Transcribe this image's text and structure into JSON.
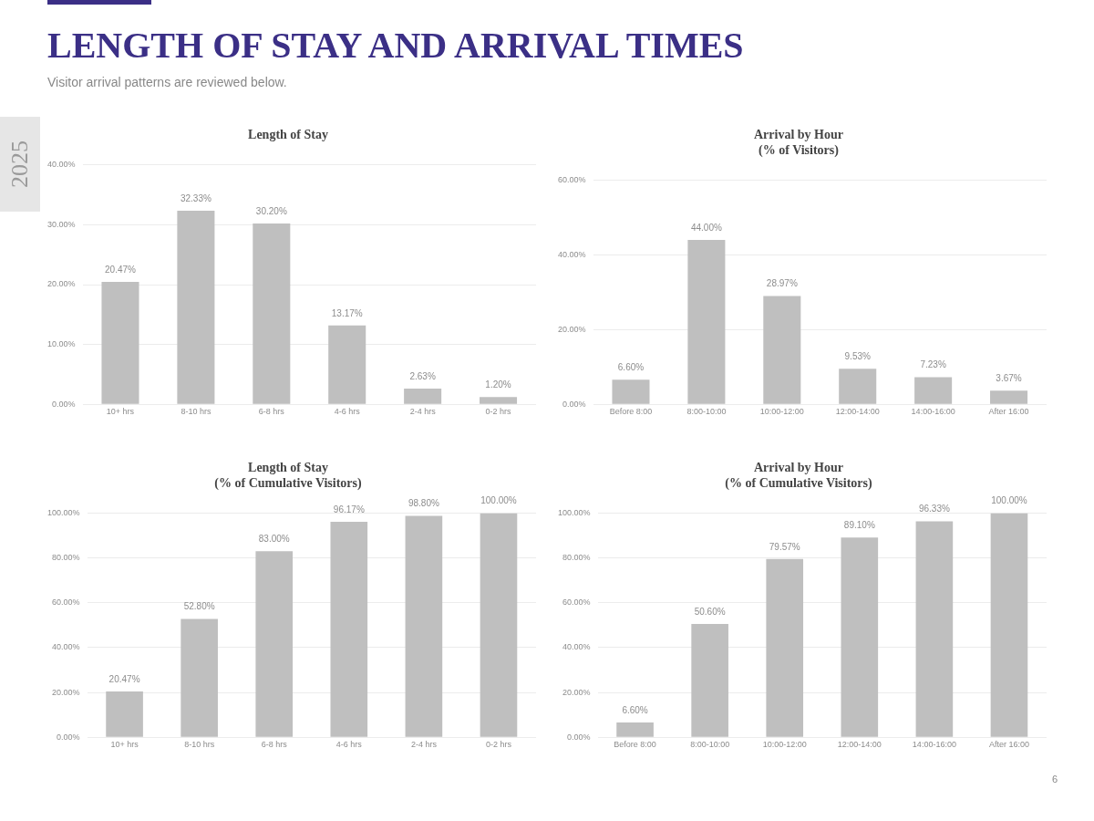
{
  "chart_data": [
    {
      "type": "other",
      "title": "LENGTH OF STAY AND ARRIVAL TIMES",
      "subtitle": "Visitor arrival patterns are reviewed below.",
      "annotations": [
        "2025",
        "6"
      ]
    },
    {
      "type": "bar",
      "title": "Length of Stay",
      "categories": [
        "10+ hrs",
        "8-10 hrs",
        "6-8 hrs",
        "4-6 hrs",
        "2-4 hrs",
        "0-2 hrs"
      ],
      "values": [
        20.47,
        32.33,
        30.2,
        13.17,
        2.63,
        1.2
      ],
      "value_labels": [
        "20.47%",
        "32.33%",
        "30.20%",
        "13.17%",
        "2.63%",
        "1.20%"
      ],
      "color": "#bfbfbf",
      "ylim": [
        0,
        40
      ],
      "yticks": [
        {
          "value": 0,
          "label": "0.00%"
        },
        {
          "value": 10,
          "label": "10.00%"
        },
        {
          "value": 20,
          "label": "20.00%"
        },
        {
          "value": 30,
          "label": "30.00%"
        },
        {
          "value": 40,
          "label": "40.00%"
        }
      ],
      "grid": "y"
    },
    {
      "type": "bar",
      "title": "Arrival by Hour\n(% of Visitors)",
      "categories": [
        "Before 8:00",
        "8:00-10:00",
        "10:00-12:00",
        "12:00-14:00",
        "14:00-16:00",
        "After 16:00"
      ],
      "values": [
        6.6,
        44,
        28.97,
        9.53,
        7.23,
        3.67
      ],
      "value_labels": [
        "6.60%",
        "44.00%",
        "28.97%",
        "9.53%",
        "7.23%",
        "3.67%"
      ],
      "color": "#bfbfbf",
      "ylim": [
        0,
        60
      ],
      "yticks": [
        {
          "value": 0,
          "label": "0.00%"
        },
        {
          "value": 20,
          "label": "20.00%"
        },
        {
          "value": 40,
          "label": "40.00%"
        },
        {
          "value": 60,
          "label": "60.00%"
        }
      ],
      "grid": "y"
    },
    {
      "type": "bar",
      "title": "Length of Stay\n(% of Cumulative Visitors)",
      "categories": [
        "10+ hrs",
        "8-10 hrs",
        "6-8 hrs",
        "4-6 hrs",
        "2-4 hrs",
        "0-2 hrs"
      ],
      "values": [
        20.47,
        52.8,
        83,
        96.17,
        98.8,
        100
      ],
      "value_labels": [
        "20.47%",
        "52.80%",
        "83.00%",
        "96.17%",
        "98.80%",
        "100.00%"
      ],
      "color": "#bfbfbf",
      "ylim": [
        0,
        100
      ],
      "yticks": [
        {
          "value": 0,
          "label": "0.00%"
        },
        {
          "value": 20,
          "label": "20.00%"
        },
        {
          "value": 40,
          "label": "40.00%"
        },
        {
          "value": 60,
          "label": "60.00%"
        },
        {
          "value": 80,
          "label": "80.00%"
        },
        {
          "value": 100,
          "label": "100.00%"
        }
      ],
      "grid": "y"
    },
    {
      "type": "bar",
      "title": "Arrival by Hour\n(% of Cumulative Visitors)",
      "categories": [
        "Before 8:00",
        "8:00-10:00",
        "10:00-12:00",
        "12:00-14:00",
        "14:00-16:00",
        "After 16:00"
      ],
      "values": [
        6.6,
        50.6,
        79.57,
        89.1,
        96.33,
        100
      ],
      "value_labels": [
        "6.60%",
        "50.60%",
        "79.57%",
        "89.10%",
        "96.33%",
        "100.00%"
      ],
      "color": "#bfbfbf",
      "ylim": [
        0,
        100
      ],
      "yticks": [
        {
          "value": 0,
          "label": "0.00%"
        },
        {
          "value": 20,
          "label": "20.00%"
        },
        {
          "value": 40,
          "label": "40.00%"
        },
        {
          "value": 60,
          "label": "60.00%"
        },
        {
          "value": 80,
          "label": "80.00%"
        },
        {
          "value": 100,
          "label": "100.00%"
        }
      ],
      "grid": "y"
    }
  ]
}
